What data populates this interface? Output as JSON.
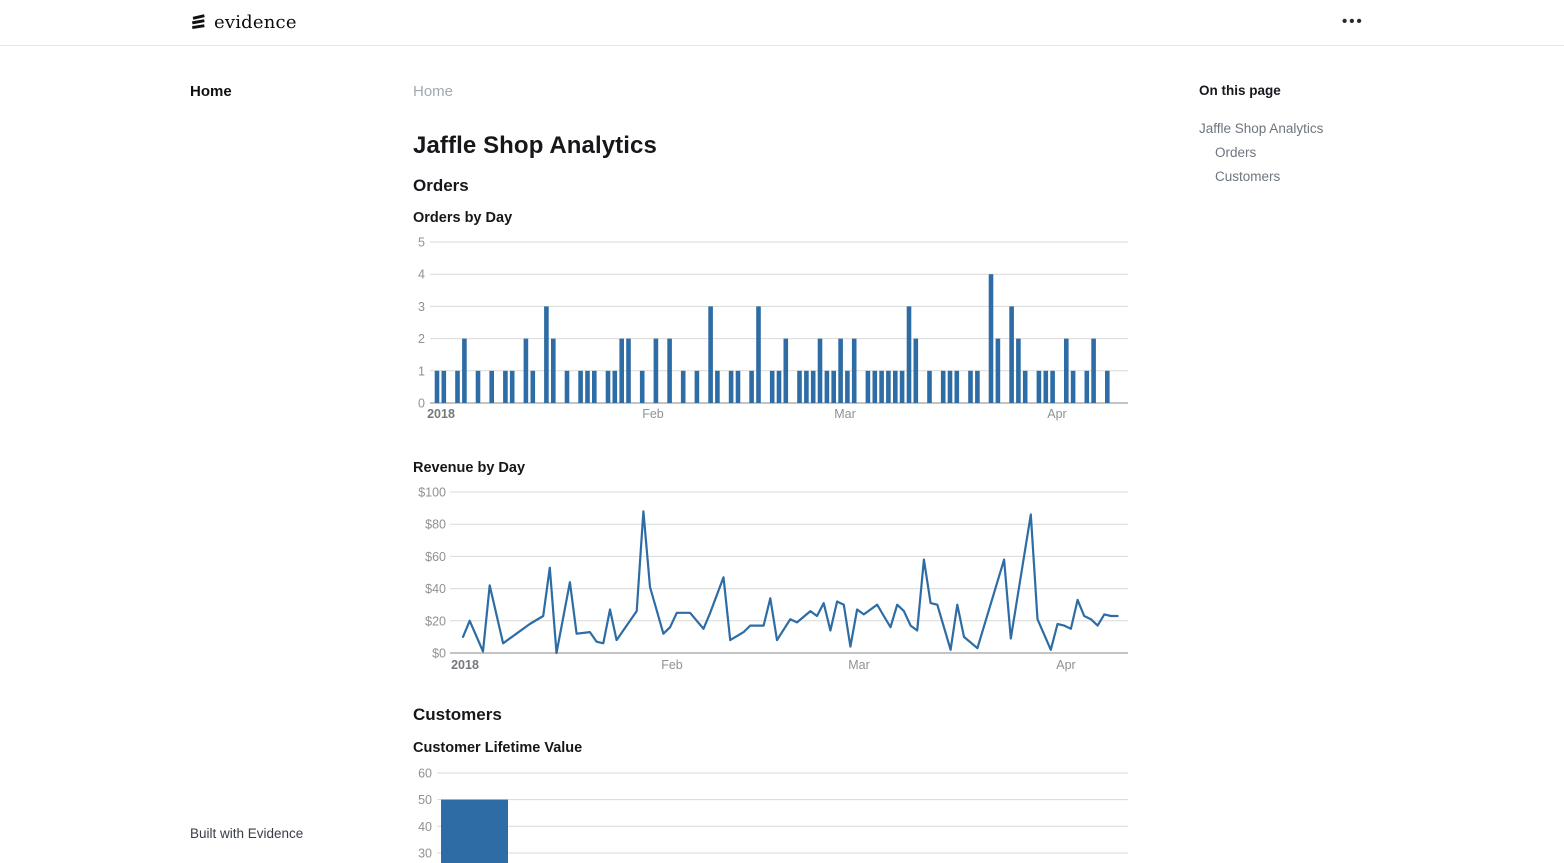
{
  "header": {
    "brand": "evidence",
    "menu_icon": "ellipsis-icon"
  },
  "sidebar": {
    "items": [
      {
        "label": "Home"
      }
    ]
  },
  "breadcrumb": {
    "label": "Home"
  },
  "page": {
    "title": "Jaffle Shop Analytics"
  },
  "sections": [
    {
      "heading": "Orders"
    },
    {
      "heading": "Customers"
    }
  ],
  "toc": {
    "title": "On this page",
    "items": [
      {
        "label": "Jaffle Shop Analytics",
        "level": 1
      },
      {
        "label": "Orders",
        "level": 2
      },
      {
        "label": "Customers",
        "level": 2
      }
    ]
  },
  "footer": {
    "label": "Built with Evidence"
  },
  "colors": {
    "accent": "#2d6ca4",
    "grid_line": "#d9d9d9",
    "axis_line": "#8a8a8a",
    "axis_text": "#8f9194",
    "axis_text_bold": "#75797e"
  },
  "chart_data": [
    {
      "type": "bar",
      "title": "Orders by Day",
      "x_start": "2018-01-01",
      "x_tick_labels": [
        "2018",
        "Feb",
        "Mar",
        "Apr"
      ],
      "x_tick_day_index": [
        0,
        31,
        59,
        90
      ],
      "y_ticks": [
        0,
        1,
        2,
        3,
        4,
        5
      ],
      "ylim": [
        0,
        5
      ],
      "values": [
        1,
        1,
        0,
        1,
        2,
        0,
        1,
        0,
        1,
        0,
        1,
        1,
        0,
        2,
        1,
        0,
        3,
        2,
        0,
        1,
        0,
        1,
        1,
        1,
        0,
        1,
        1,
        2,
        2,
        0,
        1,
        0,
        2,
        0,
        2,
        0,
        1,
        0,
        1,
        0,
        3,
        1,
        0,
        1,
        1,
        0,
        1,
        3,
        0,
        1,
        1,
        2,
        0,
        1,
        1,
        1,
        2,
        1,
        1,
        2,
        1,
        2,
        0,
        1,
        1,
        1,
        1,
        1,
        1,
        3,
        2,
        0,
        1,
        0,
        1,
        1,
        1,
        0,
        1,
        1,
        0,
        4,
        2,
        0,
        3,
        2,
        1,
        0,
        1,
        1,
        1,
        0,
        2,
        1,
        0,
        1,
        2,
        0,
        1
      ]
    },
    {
      "type": "line",
      "title": "Revenue by Day",
      "x_start": "2018-01-01",
      "x_tick_labels": [
        "2018",
        "Feb",
        "Mar",
        "Apr"
      ],
      "x_tick_day_index": [
        0,
        31,
        59,
        90
      ],
      "y_ticks": [
        "$0",
        "$20",
        "$40",
        "$60",
        "$80",
        "$100"
      ],
      "ylim": [
        0,
        100
      ],
      "points": [
        [
          0,
          10
        ],
        [
          1,
          20
        ],
        [
          3,
          1
        ],
        [
          4,
          42
        ],
        [
          6,
          6
        ],
        [
          8,
          12
        ],
        [
          10,
          18
        ],
        [
          12,
          23
        ],
        [
          13,
          53
        ],
        [
          14,
          0
        ],
        [
          16,
          44
        ],
        [
          17,
          12
        ],
        [
          19,
          13
        ],
        [
          20,
          7
        ],
        [
          21,
          6
        ],
        [
          22,
          27
        ],
        [
          23,
          8
        ],
        [
          25,
          20
        ],
        [
          26,
          26
        ],
        [
          27,
          88
        ],
        [
          28,
          41
        ],
        [
          30,
          12
        ],
        [
          31,
          16
        ],
        [
          32,
          25
        ],
        [
          34,
          25
        ],
        [
          36,
          15
        ],
        [
          37,
          25
        ],
        [
          39,
          47
        ],
        [
          40,
          8
        ],
        [
          42,
          13
        ],
        [
          43,
          17
        ],
        [
          45,
          17
        ],
        [
          46,
          34
        ],
        [
          47,
          8
        ],
        [
          49,
          21
        ],
        [
          50,
          19
        ],
        [
          52,
          26
        ],
        [
          53,
          23
        ],
        [
          54,
          31
        ],
        [
          55,
          14
        ],
        [
          56,
          32
        ],
        [
          57,
          30
        ],
        [
          58,
          4
        ],
        [
          59,
          27
        ],
        [
          60,
          24
        ],
        [
          62,
          30
        ],
        [
          63,
          23
        ],
        [
          64,
          16
        ],
        [
          65,
          30
        ],
        [
          66,
          26
        ],
        [
          67,
          17
        ],
        [
          68,
          14
        ],
        [
          69,
          58
        ],
        [
          70,
          31
        ],
        [
          71,
          30
        ],
        [
          73,
          2
        ],
        [
          74,
          30
        ],
        [
          75,
          10
        ],
        [
          77,
          3
        ],
        [
          81,
          58
        ],
        [
          82,
          9
        ],
        [
          85,
          86
        ],
        [
          86,
          21
        ],
        [
          88,
          2
        ],
        [
          89,
          18
        ],
        [
          90,
          17
        ],
        [
          91,
          15
        ],
        [
          92,
          33
        ],
        [
          93,
          23
        ],
        [
          94,
          21
        ],
        [
          95,
          17
        ],
        [
          96,
          24
        ],
        [
          97,
          23
        ],
        [
          98,
          23
        ]
      ]
    },
    {
      "type": "bar",
      "title": "Customer Lifetime Value",
      "y_ticks": [
        30,
        40,
        50,
        60
      ],
      "ylim_visible": [
        30,
        60
      ],
      "values": [
        50
      ]
    }
  ]
}
